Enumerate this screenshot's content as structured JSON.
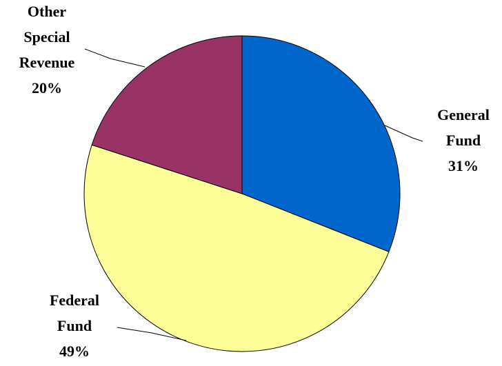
{
  "chart_data": {
    "type": "pie",
    "title": "",
    "slices": [
      {
        "label_lines": [
          "General",
          "Fund"
        ],
        "percent_label": "31%",
        "value": 31,
        "color": "#0066CC"
      },
      {
        "label_lines": [
          "Federal",
          "Fund"
        ],
        "percent_label": "49%",
        "value": 49,
        "color": "#FFFF99"
      },
      {
        "label_lines": [
          "Other",
          "Special",
          "Revenue"
        ],
        "percent_label": "20%",
        "value": 20,
        "color": "#993366"
      }
    ],
    "start": "top",
    "direction": "clockwise",
    "outline_color": "#000000"
  }
}
